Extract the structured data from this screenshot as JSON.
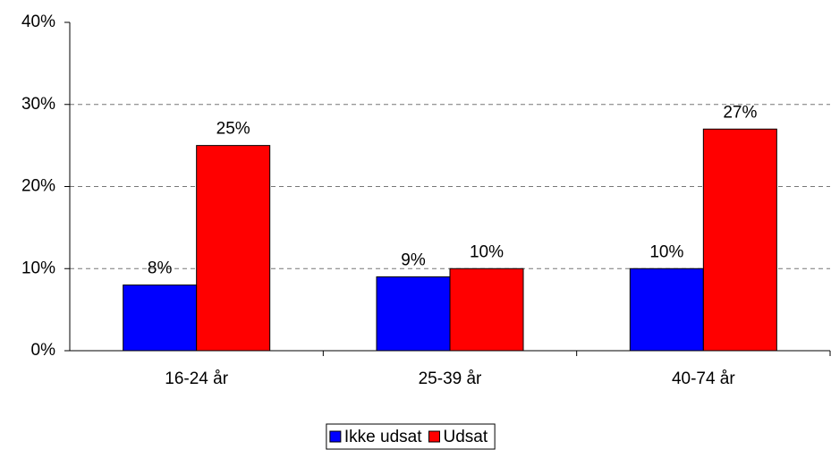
{
  "chart_data": {
    "type": "bar",
    "categories": [
      "16-24 år",
      "25-39 år",
      "40-74 år"
    ],
    "series": [
      {
        "name": "Ikke udsat",
        "color": "#0000ff",
        "values": [
          8,
          9,
          10
        ],
        "value_labels": [
          "8%",
          "9%",
          "10%"
        ]
      },
      {
        "name": "Udsat",
        "color": "#ff0000",
        "values": [
          25,
          10,
          27
        ],
        "value_labels": [
          "25%",
          "10%",
          "27%"
        ]
      }
    ],
    "ylim": [
      0,
      40
    ],
    "yticks": [
      {
        "value": 0,
        "label": "0%"
      },
      {
        "value": 10,
        "label": "10%"
      },
      {
        "value": 20,
        "label": "20%"
      },
      {
        "value": 30,
        "label": "30%"
      },
      {
        "value": 40,
        "label": "40%"
      }
    ],
    "grid": true,
    "legend": "bottom"
  }
}
